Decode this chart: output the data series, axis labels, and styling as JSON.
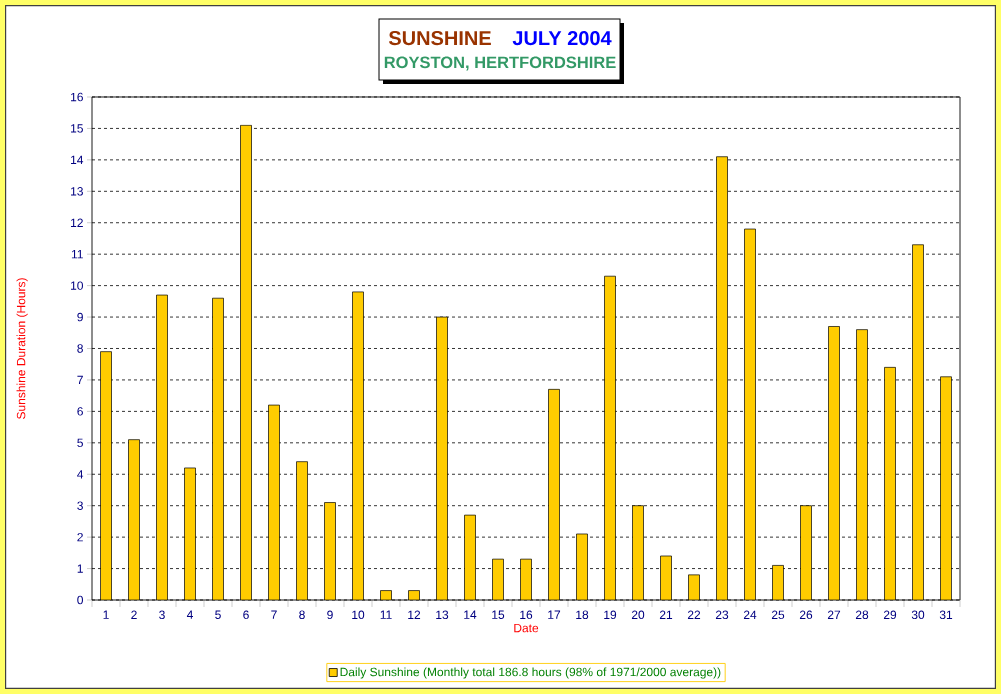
{
  "chart_data": {
    "type": "bar",
    "title": "SUNSHINE",
    "subtitle": "ROYSTON, HERTFORDSHIRE",
    "annotations": [
      "JULY 2004"
    ],
    "xlabel": "Date",
    "ylabel": "Sunshine Duration (Hours)",
    "categories": [
      "1",
      "2",
      "3",
      "4",
      "5",
      "6",
      "7",
      "8",
      "9",
      "10",
      "11",
      "12",
      "13",
      "14",
      "15",
      "16",
      "17",
      "18",
      "19",
      "20",
      "21",
      "22",
      "23",
      "24",
      "25",
      "26",
      "27",
      "28",
      "29",
      "30",
      "31"
    ],
    "series": [
      {
        "name": "Daily Sunshine (Monthly total 186.8 hours (98% of 1971/2000 average))",
        "color": "#ffcc00",
        "values": [
          7.9,
          5.1,
          9.7,
          4.2,
          9.6,
          15.1,
          6.2,
          4.4,
          3.1,
          9.8,
          0.3,
          0.3,
          9.0,
          2.7,
          1.3,
          1.3,
          6.7,
          2.1,
          10.3,
          3.0,
          1.4,
          0.8,
          14.1,
          11.8,
          1.1,
          3.0,
          8.7,
          8.6,
          7.4,
          11.3,
          7.1
        ]
      }
    ],
    "ylim": [
      0,
      16
    ],
    "yticks": [
      0,
      1,
      2,
      3,
      4,
      5,
      6,
      7,
      8,
      9,
      10,
      11,
      12,
      13,
      14,
      15,
      16
    ],
    "grid": "y",
    "legend": "bottom"
  }
}
